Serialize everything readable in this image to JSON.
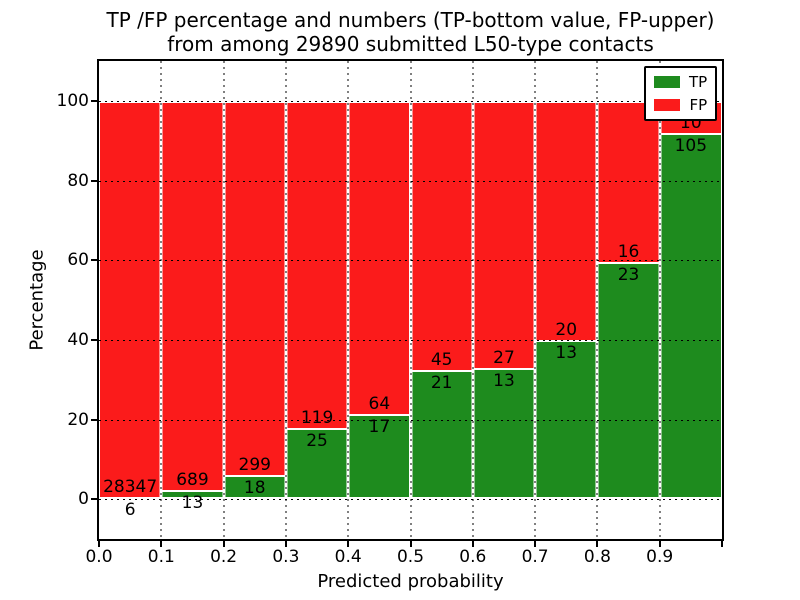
{
  "title": {
    "line1": "TP /FP percentage and numbers (TP-bottom value, FP-upper)",
    "line2": "from among 29890 submitted L50-type contacts"
  },
  "axes": {
    "xlabel": "Predicted probability",
    "ylabel": "Percentage",
    "xtick_labels": [
      "0.0",
      "0.1",
      "0.2",
      "0.3",
      "0.4",
      "0.5",
      "0.6",
      "0.7",
      "0.8",
      "0.9"
    ],
    "ytick_values": [
      0,
      20,
      40,
      60,
      80,
      100
    ],
    "ytick_labels": [
      "0",
      "20",
      "40",
      "60",
      "80",
      "100"
    ],
    "xlim": [
      0.0,
      1.0
    ],
    "ylim": [
      -10,
      110
    ],
    "grid": "dotted"
  },
  "legend": {
    "position": "upper right",
    "entries": [
      {
        "label": "TP",
        "color": "#1e8b1e"
      },
      {
        "label": "FP",
        "color": "#fb1b1b"
      }
    ]
  },
  "colors": {
    "tp": "#1e8b1e",
    "fp": "#fb1b1b",
    "grid": "#000000",
    "frame": "#000000"
  },
  "chart_data": {
    "type": "bar",
    "stacked": true,
    "normalized_to_percent": true,
    "title": "TP /FP percentage and numbers (TP-bottom value, FP-upper) from among 29890 submitted L50-type contacts",
    "xlabel": "Predicted probability",
    "ylabel": "Percentage",
    "total_submitted": 29890,
    "bin_edges": [
      0.0,
      0.1,
      0.2,
      0.3,
      0.4,
      0.5,
      0.6,
      0.7,
      0.8,
      0.9,
      1.0
    ],
    "series": [
      {
        "name": "TP",
        "color": "#1e8b1e",
        "counts": [
          6,
          13,
          18,
          25,
          17,
          21,
          13,
          13,
          23,
          105
        ]
      },
      {
        "name": "FP",
        "color": "#fb1b1b",
        "counts": [
          28347,
          689,
          299,
          119,
          64,
          45,
          27,
          20,
          16,
          10
        ]
      }
    ],
    "bar_value_labels": "TP count below green/red boundary, FP count above boundary",
    "ylim": [
      -10,
      110
    ]
  }
}
